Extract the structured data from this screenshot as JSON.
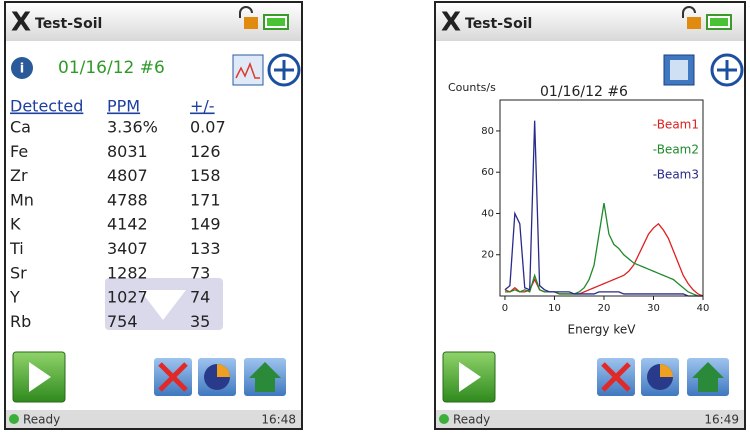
{
  "screens": [
    {
      "title": "Test-Soil",
      "info": "01/16/12 #6",
      "table": {
        "headers": [
          "Detected",
          "PPM",
          "+/-"
        ],
        "rows": [
          [
            "Ca",
            "3.36%",
            "0.07"
          ],
          [
            "Fe",
            "8031",
            "126"
          ],
          [
            "Zr",
            "4807",
            "158"
          ],
          [
            "Mn",
            "4788",
            "171"
          ],
          [
            "K",
            "4142",
            "149"
          ],
          [
            "Ti",
            "3407",
            "133"
          ],
          [
            "Sr",
            "1282",
            "73"
          ],
          [
            "Y",
            "1027",
            "74"
          ],
          [
            "Rb",
            "754",
            "35"
          ]
        ]
      },
      "status": "Ready",
      "time": "16:48"
    },
    {
      "title": "Test-Soil",
      "status": "Ready",
      "time": "16:49",
      "chart_data": {
        "type": "line",
        "title": "01/16/12 #6",
        "y_label": "Counts/s",
        "x_label": "Energy keV",
        "x": [
          0,
          1,
          2,
          3,
          4,
          5,
          6,
          7,
          8,
          9,
          10,
          11,
          12,
          13,
          14,
          15,
          16,
          17,
          18,
          19,
          20,
          21,
          22,
          23,
          24,
          25,
          26,
          27,
          28,
          29,
          30,
          31,
          32,
          33,
          34,
          35,
          36,
          37,
          38,
          39,
          40
        ],
        "series": [
          {
            "name": "-Beam1",
            "color": "#e02020",
            "values": [
              3,
              2,
              4,
              2,
              2,
              3,
              8,
              3,
              2,
              2,
              2,
              1,
              1,
              1,
              1,
              1,
              2,
              3,
              4,
              5,
              6,
              7,
              8,
              9,
              10,
              12,
              15,
              20,
              25,
              30,
              33,
              35,
              32,
              28,
              22,
              16,
              10,
              6,
              3,
              1,
              0
            ]
          },
          {
            "name": "-Beam2",
            "color": "#1f8a2a",
            "values": [
              2,
              2,
              3,
              2,
              3,
              2,
              10,
              3,
              2,
              2,
              2,
              1,
              1,
              1,
              1,
              2,
              4,
              8,
              15,
              30,
              45,
              30,
              25,
              23,
              20,
              18,
              16,
              15,
              14,
              13,
              12,
              11,
              10,
              9,
              8,
              6,
              4,
              2,
              1,
              0,
              0
            ]
          },
          {
            "name": "-Beam3",
            "color": "#2a2a8a",
            "values": [
              3,
              5,
              40,
              35,
              4,
              3,
              85,
              5,
              3,
              2,
              2,
              2,
              2,
              2,
              1,
              1,
              1,
              1,
              1,
              2,
              2,
              2,
              2,
              2,
              1,
              1,
              1,
              1,
              1,
              1,
              1,
              1,
              1,
              1,
              1,
              1,
              1,
              0,
              0,
              0,
              0
            ]
          }
        ],
        "xlim": [
          -1,
          40
        ],
        "ylim": [
          0,
          95
        ],
        "xticks": [
          0,
          10,
          20,
          30,
          40
        ],
        "yticks": [
          20,
          40,
          60,
          80
        ]
      }
    }
  ]
}
